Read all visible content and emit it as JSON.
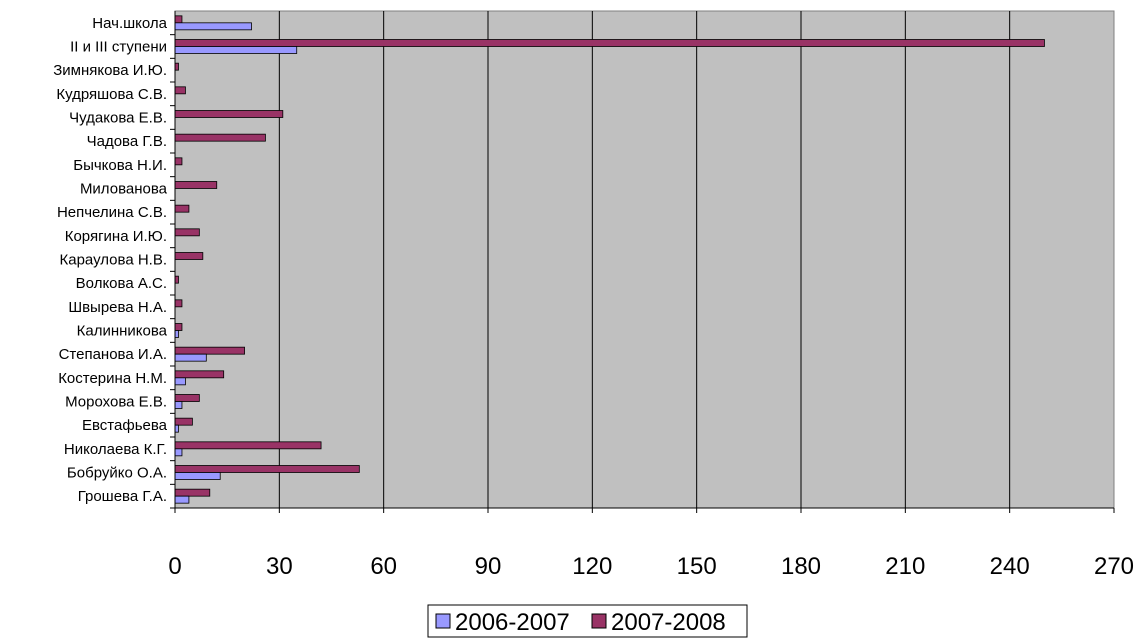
{
  "chart_data": {
    "type": "bar",
    "orientation": "horizontal",
    "title": "",
    "xlabel": "",
    "ylabel": "",
    "xlim": [
      0,
      270
    ],
    "x_ticks": [
      0,
      30,
      60,
      90,
      120,
      150,
      180,
      210,
      240,
      270
    ],
    "grid": "vertical",
    "legend_position": "bottom",
    "categories": [
      "Нач.школа",
      "II и III ступени",
      "Зимнякова И.Ю.",
      "Кудряшова С.В.",
      "Чудакова Е.В.",
      "Чадова Г.В.",
      "Бычкова Н.И.",
      "Милованова",
      "Непчелина С.В.",
      "Корягина И.Ю.",
      "Караулова Н.В.",
      "Волкова А.С.",
      "Швырева Н.А.",
      "Калинникова",
      "Степанова И.А.",
      "Костерина Н.М.",
      "Морохова Е.В.",
      "Евстафьева",
      "Николаева К.Г.",
      "Бобруйко О.А.",
      "Грошева Г.А."
    ],
    "series": [
      {
        "name": "2006-2007",
        "color": "#9999ff",
        "values": [
          22,
          35,
          0,
          0,
          0,
          0,
          0,
          0,
          0,
          0,
          0,
          0,
          0,
          1,
          9,
          3,
          2,
          1,
          2,
          13,
          4
        ]
      },
      {
        "name": "2007-2008",
        "color": "#993366",
        "values": [
          2,
          250,
          1,
          3,
          31,
          26,
          2,
          12,
          4,
          7,
          8,
          1,
          2,
          2,
          20,
          14,
          7,
          5,
          42,
          53,
          10
        ]
      }
    ]
  }
}
